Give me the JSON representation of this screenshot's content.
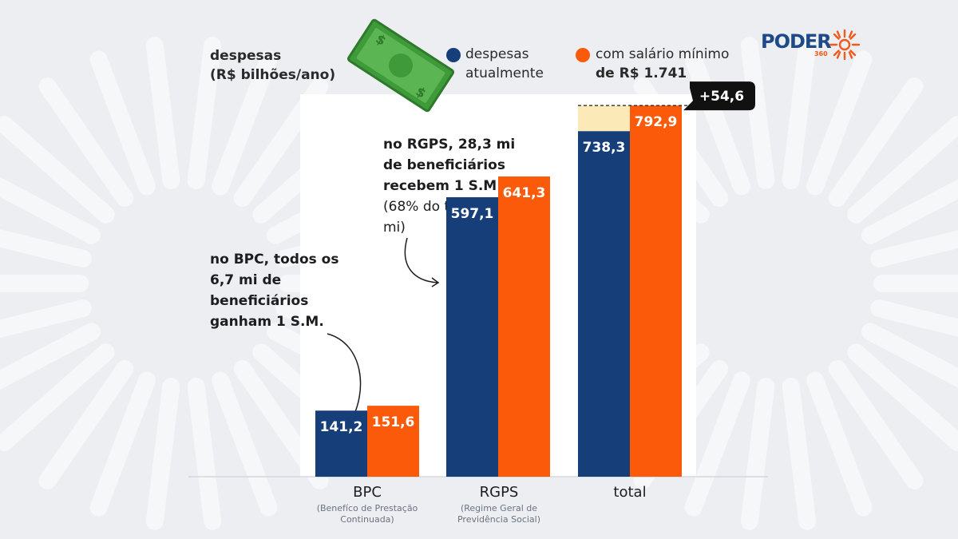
{
  "brand": {
    "name": "PODER",
    "sub": "360"
  },
  "colors": {
    "current": "#163f7a",
    "minimum_wage": "#fa5a0a",
    "increase": "#fbeab8",
    "badge": "#111111",
    "panel": "#ffffff",
    "background": "#eceef2"
  },
  "chart_data": {
    "type": "bar",
    "ylabel": "despesas\n(R$ bilhões/ano)",
    "categories": [
      "BPC",
      "RGPS",
      "total"
    ],
    "category_subtitles": [
      "(Benefíco de Prestação\nContinuada)",
      "(Regime Geral de\nPrevidência Social)",
      ""
    ],
    "series": [
      {
        "name": "despesas atualmente",
        "values": [
          141.2,
          597.1,
          738.3
        ],
        "labels": [
          "141,2",
          "597,1",
          "738,3"
        ]
      },
      {
        "name": "com salário mínimo de R$ 1.741",
        "values": [
          151.6,
          641.3,
          792.9
        ],
        "labels": [
          "151,6",
          "641,3",
          "792,9"
        ]
      }
    ],
    "increase": {
      "category": "total",
      "value": 54.6,
      "label": "+54,6"
    },
    "ylim": [
      0,
      800
    ],
    "grid": false,
    "legend_position": "top"
  },
  "legend": {
    "current_line1": "despesas",
    "current_line2": "atualmente",
    "minimum_line1": "com salário mínimo",
    "minimum_line2": "de R$ 1.741"
  },
  "annotations": {
    "bpc_bold": "no BPC, todos os 6,7 mi de beneficiários ganham 1 S.M.",
    "rgps_bold": "no RGPS, 28,3 mi de beneficiários recebem 1 S.M.",
    "rgps_regular": "(68% do total de 41,6 mi)"
  }
}
